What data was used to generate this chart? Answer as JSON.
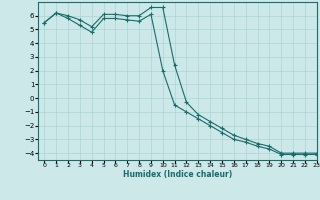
{
  "title": "",
  "xlabel": "Humidex (Indice chaleur)",
  "ylabel": "",
  "background_color": "#cce8e8",
  "line_color": "#1a6b6b",
  "grid_color": "#aad4d4",
  "xlim": [
    -0.5,
    23
  ],
  "ylim": [
    -4.5,
    7.0
  ],
  "xticks": [
    0,
    1,
    2,
    3,
    4,
    5,
    6,
    7,
    8,
    9,
    10,
    11,
    12,
    13,
    14,
    15,
    16,
    17,
    18,
    19,
    20,
    21,
    22,
    23
  ],
  "yticks": [
    -4,
    -3,
    -2,
    -1,
    0,
    1,
    2,
    3,
    4,
    5,
    6
  ],
  "line1_x": [
    0,
    1,
    2,
    3,
    4,
    5,
    6,
    7,
    8,
    9,
    10,
    11,
    12,
    13,
    14,
    15,
    16,
    17,
    18,
    19,
    20,
    21,
    22,
    23
  ],
  "line1_y": [
    5.5,
    6.2,
    6.0,
    5.7,
    5.2,
    6.1,
    6.1,
    6.0,
    6.0,
    6.6,
    6.6,
    2.4,
    -0.3,
    -1.2,
    -1.7,
    -2.2,
    -2.7,
    -3.0,
    -3.3,
    -3.5,
    -4.0,
    -4.0,
    -4.0,
    -4.0
  ],
  "line2_x": [
    0,
    1,
    2,
    3,
    4,
    5,
    6,
    7,
    8,
    9,
    10,
    11,
    12,
    13,
    14,
    15,
    16,
    17,
    18,
    19,
    20,
    21,
    22,
    23
  ],
  "line2_y": [
    5.5,
    6.2,
    5.8,
    5.3,
    4.8,
    5.8,
    5.8,
    5.7,
    5.6,
    6.1,
    2.0,
    -0.5,
    -1.0,
    -1.5,
    -2.0,
    -2.5,
    -3.0,
    -3.2,
    -3.5,
    -3.7,
    -4.1,
    -4.1,
    -4.1,
    -4.1
  ]
}
